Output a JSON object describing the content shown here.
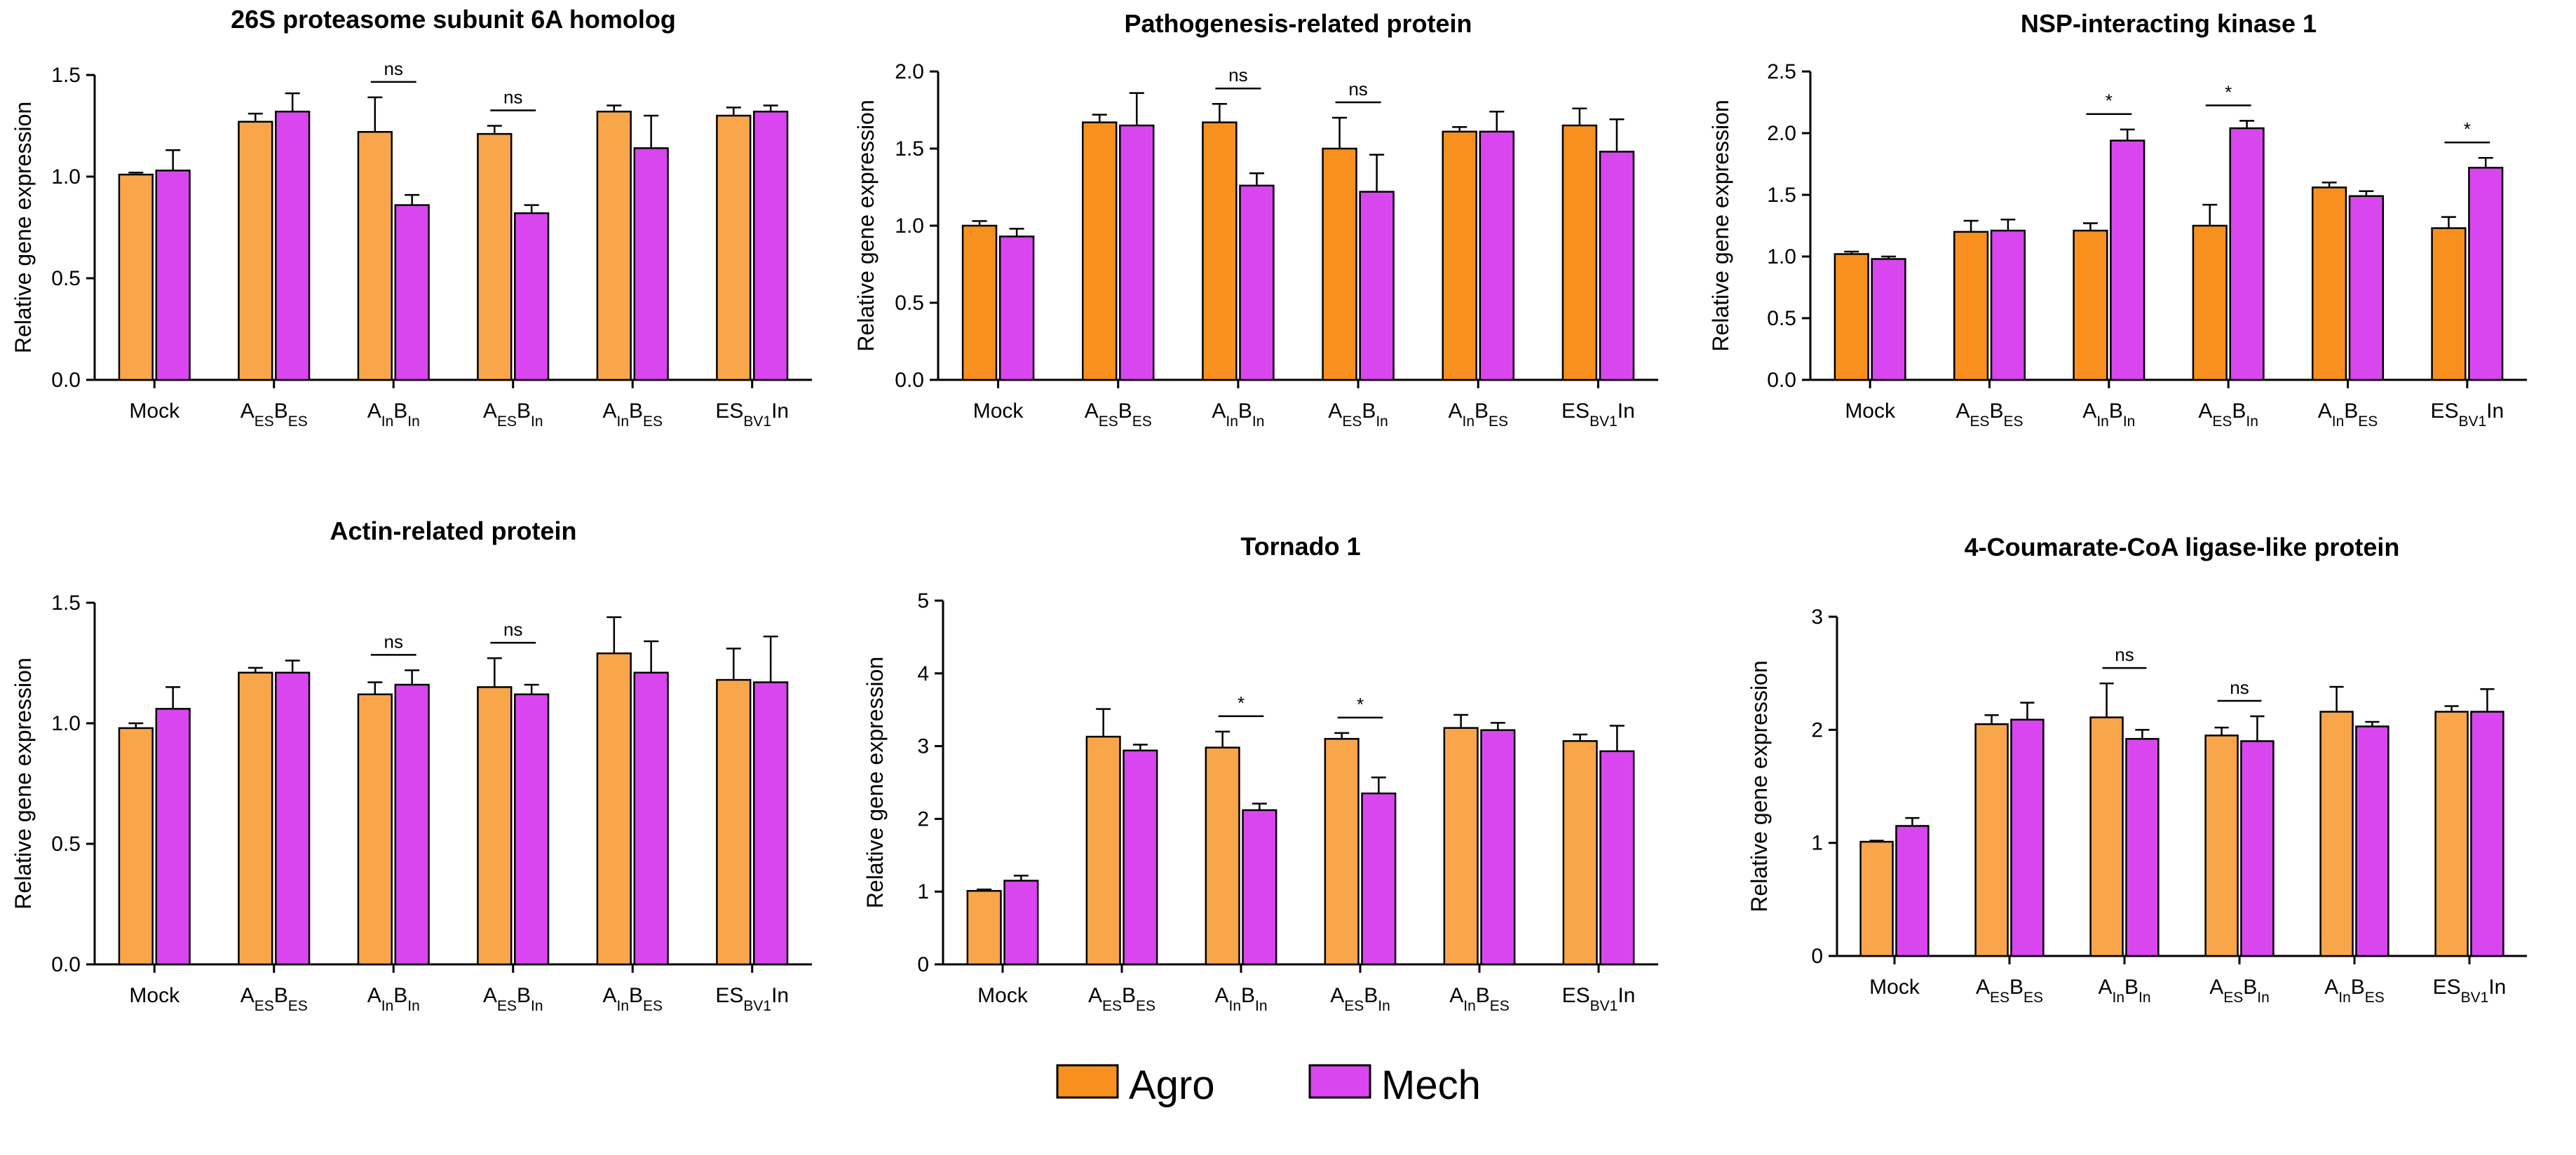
{
  "legend": [
    {
      "name": "Agro",
      "color": "#F7901E"
    },
    {
      "name": "Mech",
      "color": "#D946EF"
    }
  ],
  "category_parts": [
    [
      {
        "t": "Mock"
      }
    ],
    [
      {
        "t": "A"
      },
      {
        "t": "ES",
        "sub": true
      },
      {
        "t": "B"
      },
      {
        "t": "ES",
        "sub": true
      }
    ],
    [
      {
        "t": "A"
      },
      {
        "t": "In",
        "sub": true
      },
      {
        "t": "B"
      },
      {
        "t": "In",
        "sub": true
      }
    ],
    [
      {
        "t": "A"
      },
      {
        "t": "ES",
        "sub": true
      },
      {
        "t": "B"
      },
      {
        "t": "In",
        "sub": true
      }
    ],
    [
      {
        "t": "A"
      },
      {
        "t": "In",
        "sub": true
      },
      {
        "t": "B"
      },
      {
        "t": "ES",
        "sub": true
      }
    ],
    [
      {
        "t": "ES"
      },
      {
        "t": "BV1",
        "sub": true
      },
      {
        "t": "In"
      }
    ]
  ],
  "chart_data": [
    {
      "type": "bar",
      "title": "26S proteasome subunit 6A homolog",
      "ylabel": "Relative gene expression",
      "categories": [
        "Mock",
        "AESBES",
        "AInBIn",
        "AESBIn",
        "AInBES",
        "ESBV1In"
      ],
      "ylim": [
        0,
        1.5
      ],
      "yticks": [
        "0.0",
        "0.5",
        "1.0",
        "1.5"
      ],
      "agro_color": "#F9A64A",
      "series": [
        {
          "name": "Agro",
          "values": [
            1.01,
            1.27,
            1.22,
            1.21,
            1.32,
            1.3
          ],
          "errors": [
            0.01,
            0.04,
            0.17,
            0.04,
            0.03,
            0.04
          ]
        },
        {
          "name": "Mech",
          "values": [
            1.03,
            1.32,
            0.86,
            0.82,
            1.14,
            1.32
          ],
          "errors": [
            0.1,
            0.09,
            0.05,
            0.04,
            0.16,
            0.03
          ]
        }
      ],
      "significance": [
        {
          "category": 2,
          "label": "ns"
        },
        {
          "category": 3,
          "label": "ns"
        }
      ]
    },
    {
      "type": "bar",
      "title": "Pathogenesis-related protein",
      "ylabel": "Relative gene expression",
      "categories": [
        "Mock",
        "AESBES",
        "AInBIn",
        "AESBIn",
        "AInBES",
        "ESBV1In"
      ],
      "ylim": [
        0,
        2.0
      ],
      "yticks": [
        "0.0",
        "0.5",
        "1.0",
        "1.5",
        "2.0"
      ],
      "agro_color": "#F7901E",
      "series": [
        {
          "name": "Agro",
          "values": [
            1.0,
            1.67,
            1.67,
            1.5,
            1.61,
            1.65
          ],
          "errors": [
            0.03,
            0.05,
            0.12,
            0.2,
            0.03,
            0.11
          ]
        },
        {
          "name": "Mech",
          "values": [
            0.93,
            1.65,
            1.26,
            1.22,
            1.61,
            1.48
          ],
          "errors": [
            0.05,
            0.21,
            0.08,
            0.24,
            0.13,
            0.21
          ]
        }
      ],
      "significance": [
        {
          "category": 2,
          "label": "ns"
        },
        {
          "category": 3,
          "label": "ns"
        }
      ]
    },
    {
      "type": "bar",
      "title": "NSP-interacting kinase 1",
      "ylabel": "Relative gene expression",
      "categories": [
        "Mock",
        "AESBES",
        "AInBIn",
        "AESBIn",
        "AInBES",
        "ESBV1In"
      ],
      "ylim": [
        0,
        2.5
      ],
      "yticks": [
        "0.0",
        "0.5",
        "1.0",
        "1.5",
        "2.0",
        "2.5"
      ],
      "agro_color": "#F7901E",
      "series": [
        {
          "name": "Agro",
          "values": [
            1.02,
            1.2,
            1.21,
            1.25,
            1.56,
            1.23
          ],
          "errors": [
            0.02,
            0.09,
            0.06,
            0.17,
            0.04,
            0.09
          ]
        },
        {
          "name": "Mech",
          "values": [
            0.98,
            1.21,
            1.94,
            2.04,
            1.49,
            1.72
          ],
          "errors": [
            0.02,
            0.09,
            0.09,
            0.06,
            0.04,
            0.08
          ]
        }
      ],
      "significance": [
        {
          "category": 2,
          "label": "*"
        },
        {
          "category": 3,
          "label": "*"
        },
        {
          "category": 5,
          "label": "*"
        }
      ]
    },
    {
      "type": "bar",
      "title": "Actin-related protein",
      "ylabel": "Relative gene expression",
      "categories": [
        "Mock",
        "AESBES",
        "AInBIn",
        "AESBIn",
        "AInBES",
        "ESBV1In"
      ],
      "ylim": [
        0,
        1.5
      ],
      "yticks": [
        "0.0",
        "0.5",
        "1.0",
        "1.5"
      ],
      "agro_color": "#F9A64A",
      "series": [
        {
          "name": "Agro",
          "values": [
            0.98,
            1.21,
            1.12,
            1.15,
            1.29,
            1.18
          ],
          "errors": [
            0.02,
            0.02,
            0.05,
            0.12,
            0.15,
            0.13
          ]
        },
        {
          "name": "Mech",
          "values": [
            1.06,
            1.21,
            1.16,
            1.12,
            1.21,
            1.17
          ],
          "errors": [
            0.09,
            0.05,
            0.06,
            0.04,
            0.13,
            0.19
          ]
        }
      ],
      "significance": [
        {
          "category": 2,
          "label": "ns"
        },
        {
          "category": 3,
          "label": "ns"
        }
      ]
    },
    {
      "type": "bar",
      "title": "Tornado 1",
      "ylabel": "Relative gene expression",
      "categories": [
        "Mock",
        "AESBES",
        "AInBIn",
        "AESBIn",
        "AInBES",
        "ESBV1In"
      ],
      "ylim": [
        0,
        5
      ],
      "yticks": [
        "0",
        "1",
        "2",
        "3",
        "4",
        "5"
      ],
      "agro_color": "#F9A64A",
      "series": [
        {
          "name": "Agro",
          "values": [
            1.01,
            3.13,
            2.98,
            3.1,
            3.25,
            3.07
          ],
          "errors": [
            0.02,
            0.38,
            0.22,
            0.08,
            0.18,
            0.09
          ]
        },
        {
          "name": "Mech",
          "values": [
            1.15,
            2.94,
            2.12,
            2.35,
            3.22,
            2.93
          ],
          "errors": [
            0.07,
            0.08,
            0.09,
            0.22,
            0.1,
            0.35
          ]
        }
      ],
      "significance": [
        {
          "category": 2,
          "label": "*"
        },
        {
          "category": 3,
          "label": "*"
        }
      ]
    },
    {
      "type": "bar",
      "title": "4-Coumarate-CoA ligase-like protein",
      "ylabel": "Relative gene expression",
      "categories": [
        "Mock",
        "AESBES",
        "AInBIn",
        "AESBIn",
        "AInBES",
        "ESBV1In"
      ],
      "ylim": [
        0,
        3
      ],
      "yticks": [
        "0",
        "1",
        "2",
        "3"
      ],
      "agro_color": "#F9A64A",
      "series": [
        {
          "name": "Agro",
          "values": [
            1.01,
            2.05,
            2.11,
            1.95,
            2.16,
            2.16
          ],
          "errors": [
            0.01,
            0.08,
            0.3,
            0.07,
            0.22,
            0.05
          ]
        },
        {
          "name": "Mech",
          "values": [
            1.15,
            2.09,
            1.92,
            1.9,
            2.03,
            2.16
          ],
          "errors": [
            0.07,
            0.15,
            0.08,
            0.22,
            0.04,
            0.2
          ]
        }
      ],
      "significance": [
        {
          "category": 2,
          "label": "ns"
        },
        {
          "category": 3,
          "label": "ns"
        }
      ]
    }
  ]
}
